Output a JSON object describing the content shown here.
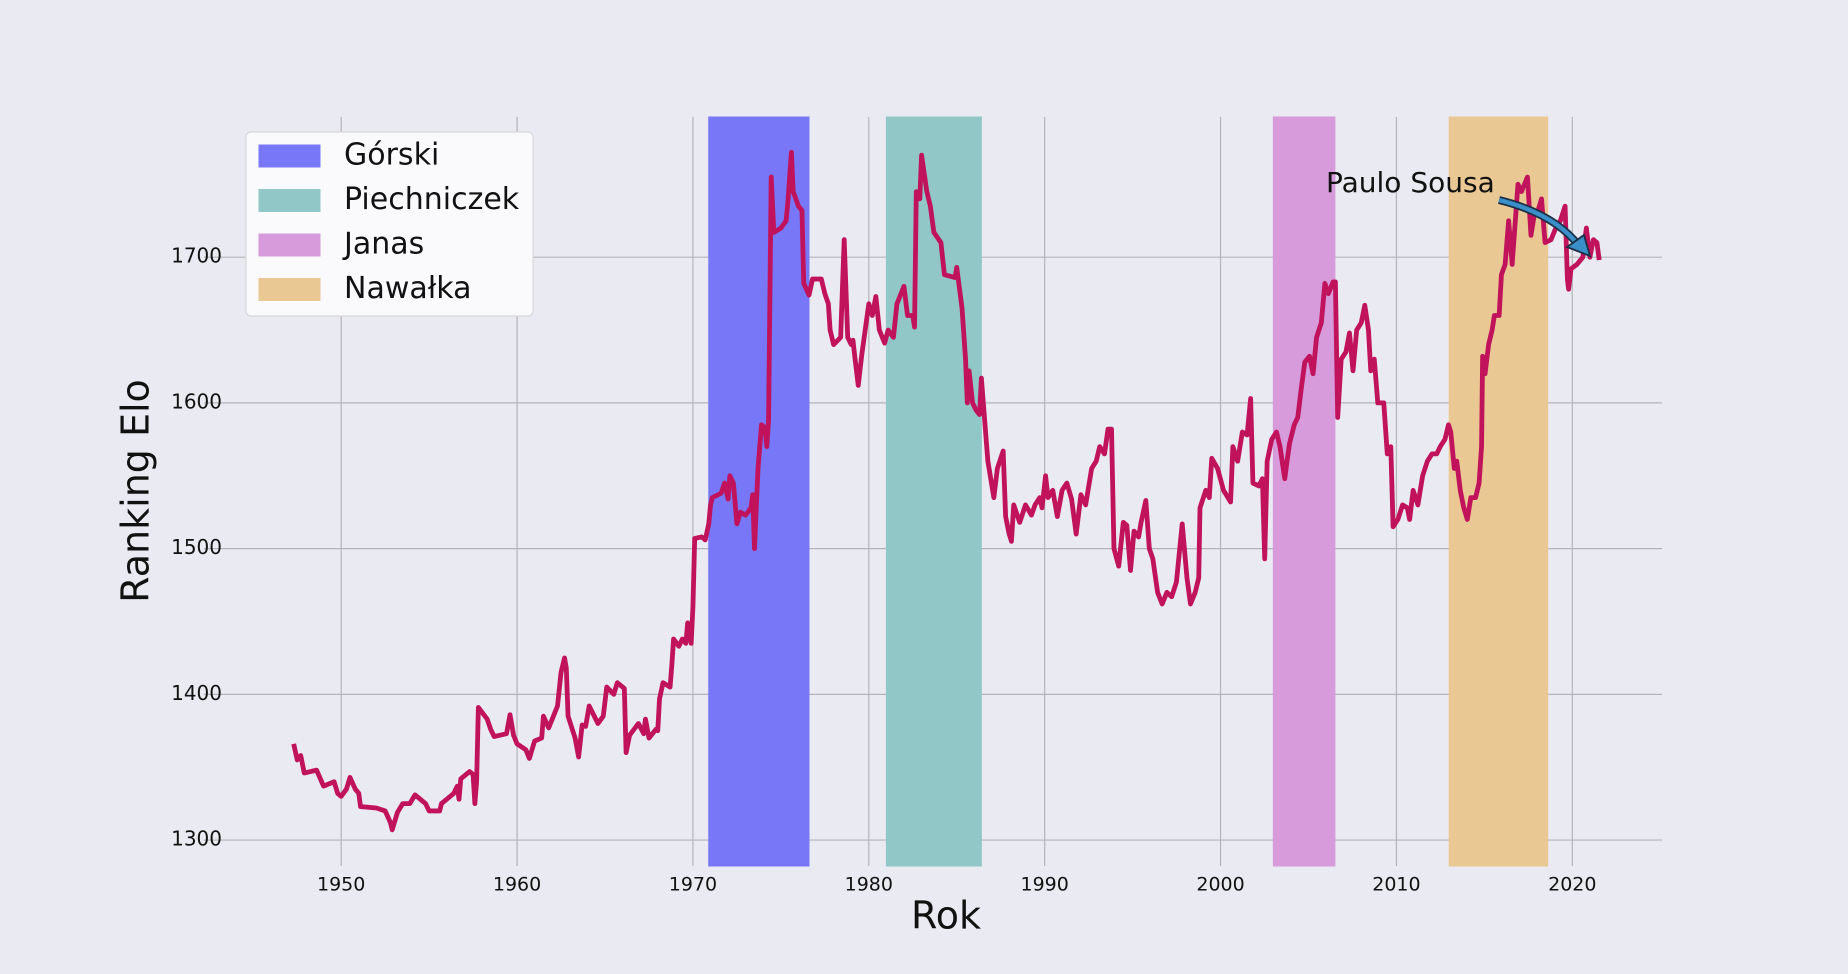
{
  "chart_data": {
    "type": "line",
    "xlabel": "Rok",
    "ylabel": "Ranking Elo",
    "color": "#c0135c",
    "x": [
      1947.3,
      1947.5,
      1947.7,
      1947.9,
      1948.6,
      1949.0,
      1949.6,
      1949.8,
      1950.0,
      1950.3,
      1950.5,
      1950.8,
      1951.0,
      1951.1,
      1952.0,
      1952.5,
      1952.8,
      1952.9,
      1953.2,
      1953.5,
      1953.9,
      1954.2,
      1954.8,
      1955.0,
      1955.6,
      1955.7,
      1956.4,
      1956.6,
      1956.7,
      1956.8,
      1957.3,
      1957.5,
      1957.6,
      1957.7,
      1957.8,
      1958.3,
      1958.5,
      1958.7,
      1959.4,
      1959.6,
      1959.8,
      1960.0,
      1960.5,
      1960.7,
      1961.0,
      1961.4,
      1961.5,
      1961.8,
      1962.3,
      1962.5,
      1962.7,
      1962.8,
      1962.9,
      1963.3,
      1963.5,
      1963.7,
      1963.9,
      1964.1,
      1964.6,
      1964.9,
      1965.1,
      1965.5,
      1965.7,
      1966.1,
      1966.2,
      1966.4,
      1966.9,
      1967.2,
      1967.3,
      1967.5,
      1967.9,
      1968.0,
      1968.1,
      1968.3,
      1968.7,
      1968.8,
      1968.9,
      1969.2,
      1969.4,
      1969.6,
      1969.7,
      1969.9,
      1970.0,
      1970.1,
      1970.5,
      1970.7,
      1970.9,
      1971.0,
      1971.1,
      1971.6,
      1971.8,
      1972.0,
      1972.1,
      1972.3,
      1972.5,
      1972.7,
      1973.0,
      1973.3,
      1973.4,
      1973.5,
      1973.7,
      1973.9,
      1974.1,
      1974.2,
      1974.3,
      1974.45,
      1974.6,
      1975.0,
      1975.3,
      1975.4,
      1975.6,
      1975.7,
      1976.0,
      1976.2,
      1976.3,
      1976.6,
      1976.8,
      1977.3,
      1977.5,
      1977.7,
      1977.8,
      1978.0,
      1978.4,
      1978.6,
      1978.8,
      1979.0,
      1979.1,
      1979.2,
      1979.4,
      1979.6,
      1980.0,
      1980.2,
      1980.4,
      1980.6,
      1980.9,
      1981.1,
      1981.4,
      1981.6,
      1982.0,
      1982.2,
      1982.5,
      1982.6,
      1982.7,
      1982.9,
      1983.0,
      1983.3,
      1983.5,
      1983.7,
      1984.1,
      1984.3,
      1984.9,
      1985.0,
      1985.3,
      1985.5,
      1985.6,
      1985.7,
      1985.9,
      1986.1,
      1986.3,
      1986.4,
      1986.77,
      1987.11,
      1987.31,
      1987.64,
      1987.78,
      1987.98,
      1988.11,
      1988.24,
      1988.58,
      1988.91,
      1989.25,
      1989.45,
      1989.72,
      1989.85,
      1990.05,
      1990.19,
      1990.46,
      1990.72,
      1990.99,
      1991.26,
      1991.53,
      1991.79,
      1992.06,
      1992.33,
      1992.67,
      1992.93,
      1993.13,
      1993.4,
      1993.6,
      1993.8,
      1993.94,
      1994.21,
      1994.47,
      1994.67,
      1994.88,
      1995.08,
      1995.34,
      1995.48,
      1995.75,
      1995.95,
      1996.15,
      1996.42,
      1996.68,
      1996.95,
      1997.22,
      1997.49,
      1997.82,
      1998.09,
      1998.29,
      1998.56,
      1998.76,
      1998.83,
      1999.16,
      1999.36,
      1999.5,
      1999.83,
      2000.17,
      2000.57,
      2000.7,
      2000.97,
      2001.24,
      2001.51,
      2001.71,
      2001.84,
      2002.18,
      2002.38,
      2002.51,
      2002.65,
      2002.91,
      2003.18,
      2003.38,
      2003.65,
      2003.78,
      2003.92,
      2004.19,
      2004.39,
      2004.59,
      2004.79,
      2005.06,
      2005.26,
      2005.46,
      2005.73,
      2005.93,
      2006.13,
      2006.4,
      2006.53,
      2006.66,
      2006.86,
      2007.13,
      2007.33,
      2007.53,
      2007.74,
      2008.0,
      2008.2,
      2008.41,
      2008.54,
      2008.74,
      2008.94,
      2009.28,
      2009.48,
      2009.68,
      2009.81,
      2010.08,
      2010.35,
      2010.62,
      2010.75,
      2010.95,
      2011.22,
      2011.49,
      2011.76,
      2012.02,
      2012.29,
      2012.49,
      2012.76,
      2012.96,
      2013.09,
      2013.29,
      2013.43,
      2013.63,
      2013.83,
      2014.03,
      2014.23,
      2014.5,
      2014.7,
      2014.84,
      2014.9,
      2015.04,
      2015.24,
      2015.44,
      2015.57,
      2015.84,
      2015.97,
      2016.18,
      2016.38,
      2016.58,
      2016.91,
      2017.11,
      2017.45,
      2017.65,
      2017.85,
      2018.05,
      2018.25,
      2018.45,
      2018.79,
      2019.06,
      2019.32,
      2019.59,
      2019.72,
      2019.79,
      2019.93,
      2020.26,
      2020.6,
      2020.8,
      2021.0,
      2021.2,
      2021.4,
      2021.53
    ],
    "values": [
      1366,
      1355,
      1358,
      1346,
      1348,
      1337,
      1340,
      1332,
      1330,
      1335,
      1343,
      1335,
      1332,
      1323,
      1322,
      1320,
      1312,
      1307,
      1319,
      1325,
      1325,
      1331,
      1325,
      1320,
      1320,
      1325,
      1332,
      1337,
      1328,
      1342,
      1347,
      1345,
      1325,
      1340,
      1391,
      1383,
      1376,
      1371,
      1373,
      1386,
      1372,
      1366,
      1362,
      1356,
      1368,
      1370,
      1385,
      1377,
      1392,
      1415,
      1425,
      1418,
      1385,
      1370,
      1357,
      1379,
      1378,
      1392,
      1380,
      1385,
      1405,
      1400,
      1408,
      1404,
      1360,
      1372,
      1380,
      1373,
      1383,
      1370,
      1376,
      1375,
      1397,
      1408,
      1405,
      1420,
      1438,
      1433,
      1438,
      1435,
      1449,
      1435,
      1460,
      1507,
      1508,
      1506,
      1517,
      1530,
      1535,
      1538,
      1545,
      1534,
      1550,
      1545,
      1517,
      1525,
      1523,
      1528,
      1537,
      1500,
      1555,
      1585,
      1583,
      1570,
      1588,
      1755,
      1717,
      1720,
      1725,
      1738,
      1772,
      1745,
      1735,
      1732,
      1682,
      1674,
      1685,
      1685,
      1675,
      1668,
      1650,
      1640,
      1645,
      1712,
      1645,
      1640,
      1643,
      1632,
      1612,
      1633,
      1668,
      1660,
      1673,
      1650,
      1641,
      1650,
      1645,
      1668,
      1680,
      1660,
      1660,
      1652,
      1745,
      1740,
      1770,
      1745,
      1735,
      1717,
      1710,
      1688,
      1686,
      1693,
      1665,
      1630,
      1600,
      1622,
      1600,
      1595,
      1592,
      1617,
      1560,
      1535,
      1555,
      1567,
      1522,
      1510,
      1505,
      1530,
      1518,
      1530,
      1523,
      1530,
      1535,
      1528,
      1550,
      1535,
      1540,
      1522,
      1540,
      1545,
      1534,
      1510,
      1537,
      1530,
      1555,
      1560,
      1570,
      1565,
      1582,
      1582,
      1500,
      1488,
      1518,
      1516,
      1485,
      1512,
      1508,
      1518,
      1533,
      1500,
      1493,
      1470,
      1462,
      1470,
      1467,
      1477,
      1517,
      1480,
      1462,
      1470,
      1480,
      1528,
      1540,
      1535,
      1562,
      1555,
      1540,
      1532,
      1570,
      1560,
      1580,
      1578,
      1603,
      1545,
      1543,
      1548,
      1493,
      1560,
      1575,
      1580,
      1570,
      1548,
      1560,
      1572,
      1585,
      1590,
      1610,
      1628,
      1632,
      1620,
      1645,
      1655,
      1682,
      1675,
      1683,
      1683,
      1590,
      1630,
      1635,
      1648,
      1622,
      1650,
      1655,
      1667,
      1650,
      1622,
      1630,
      1600,
      1600,
      1565,
      1570,
      1515,
      1520,
      1530,
      1528,
      1520,
      1540,
      1530,
      1550,
      1560,
      1565,
      1565,
      1570,
      1575,
      1585,
      1580,
      1555,
      1560,
      1540,
      1528,
      1520,
      1535,
      1535,
      1545,
      1570,
      1632,
      1620,
      1640,
      1650,
      1660,
      1660,
      1688,
      1695,
      1725,
      1695,
      1750,
      1745,
      1755,
      1715,
      1730,
      1732,
      1740,
      1710,
      1712,
      1720,
      1725,
      1735,
      1685,
      1678,
      1692,
      1695,
      1700,
      1720,
      1700,
      1712,
      1710,
      1698
    ],
    "spans": [
      {
        "name": "Górski",
        "color": "#7777f7",
        "xrange": [
          1970.9,
          1976.6
        ]
      },
      {
        "name": "Piechniczek",
        "color": "#92c7c8",
        "xrange": [
          1981.0,
          1986.4
        ]
      },
      {
        "name": "Janas",
        "color": "#d79adb",
        "xrange": [
          2003.0,
          2006.5
        ]
      },
      {
        "name": "Nawałka",
        "color": "#e9c893",
        "xrange": [
          2013.0,
          2018.6
        ]
      }
    ],
    "annotation": {
      "text": "Paulo Sousa"
    },
    "xlim": [
      1942.2,
      2025.1
    ],
    "ylim": [
      1282.2,
      1796.2
    ],
    "xticks": [
      1950,
      1960,
      1970,
      1980,
      1990,
      2000,
      2010,
      2020
    ],
    "yticks": [
      1300,
      1400,
      1500,
      1600,
      1700
    ],
    "grid": true,
    "legend": "upper left"
  }
}
